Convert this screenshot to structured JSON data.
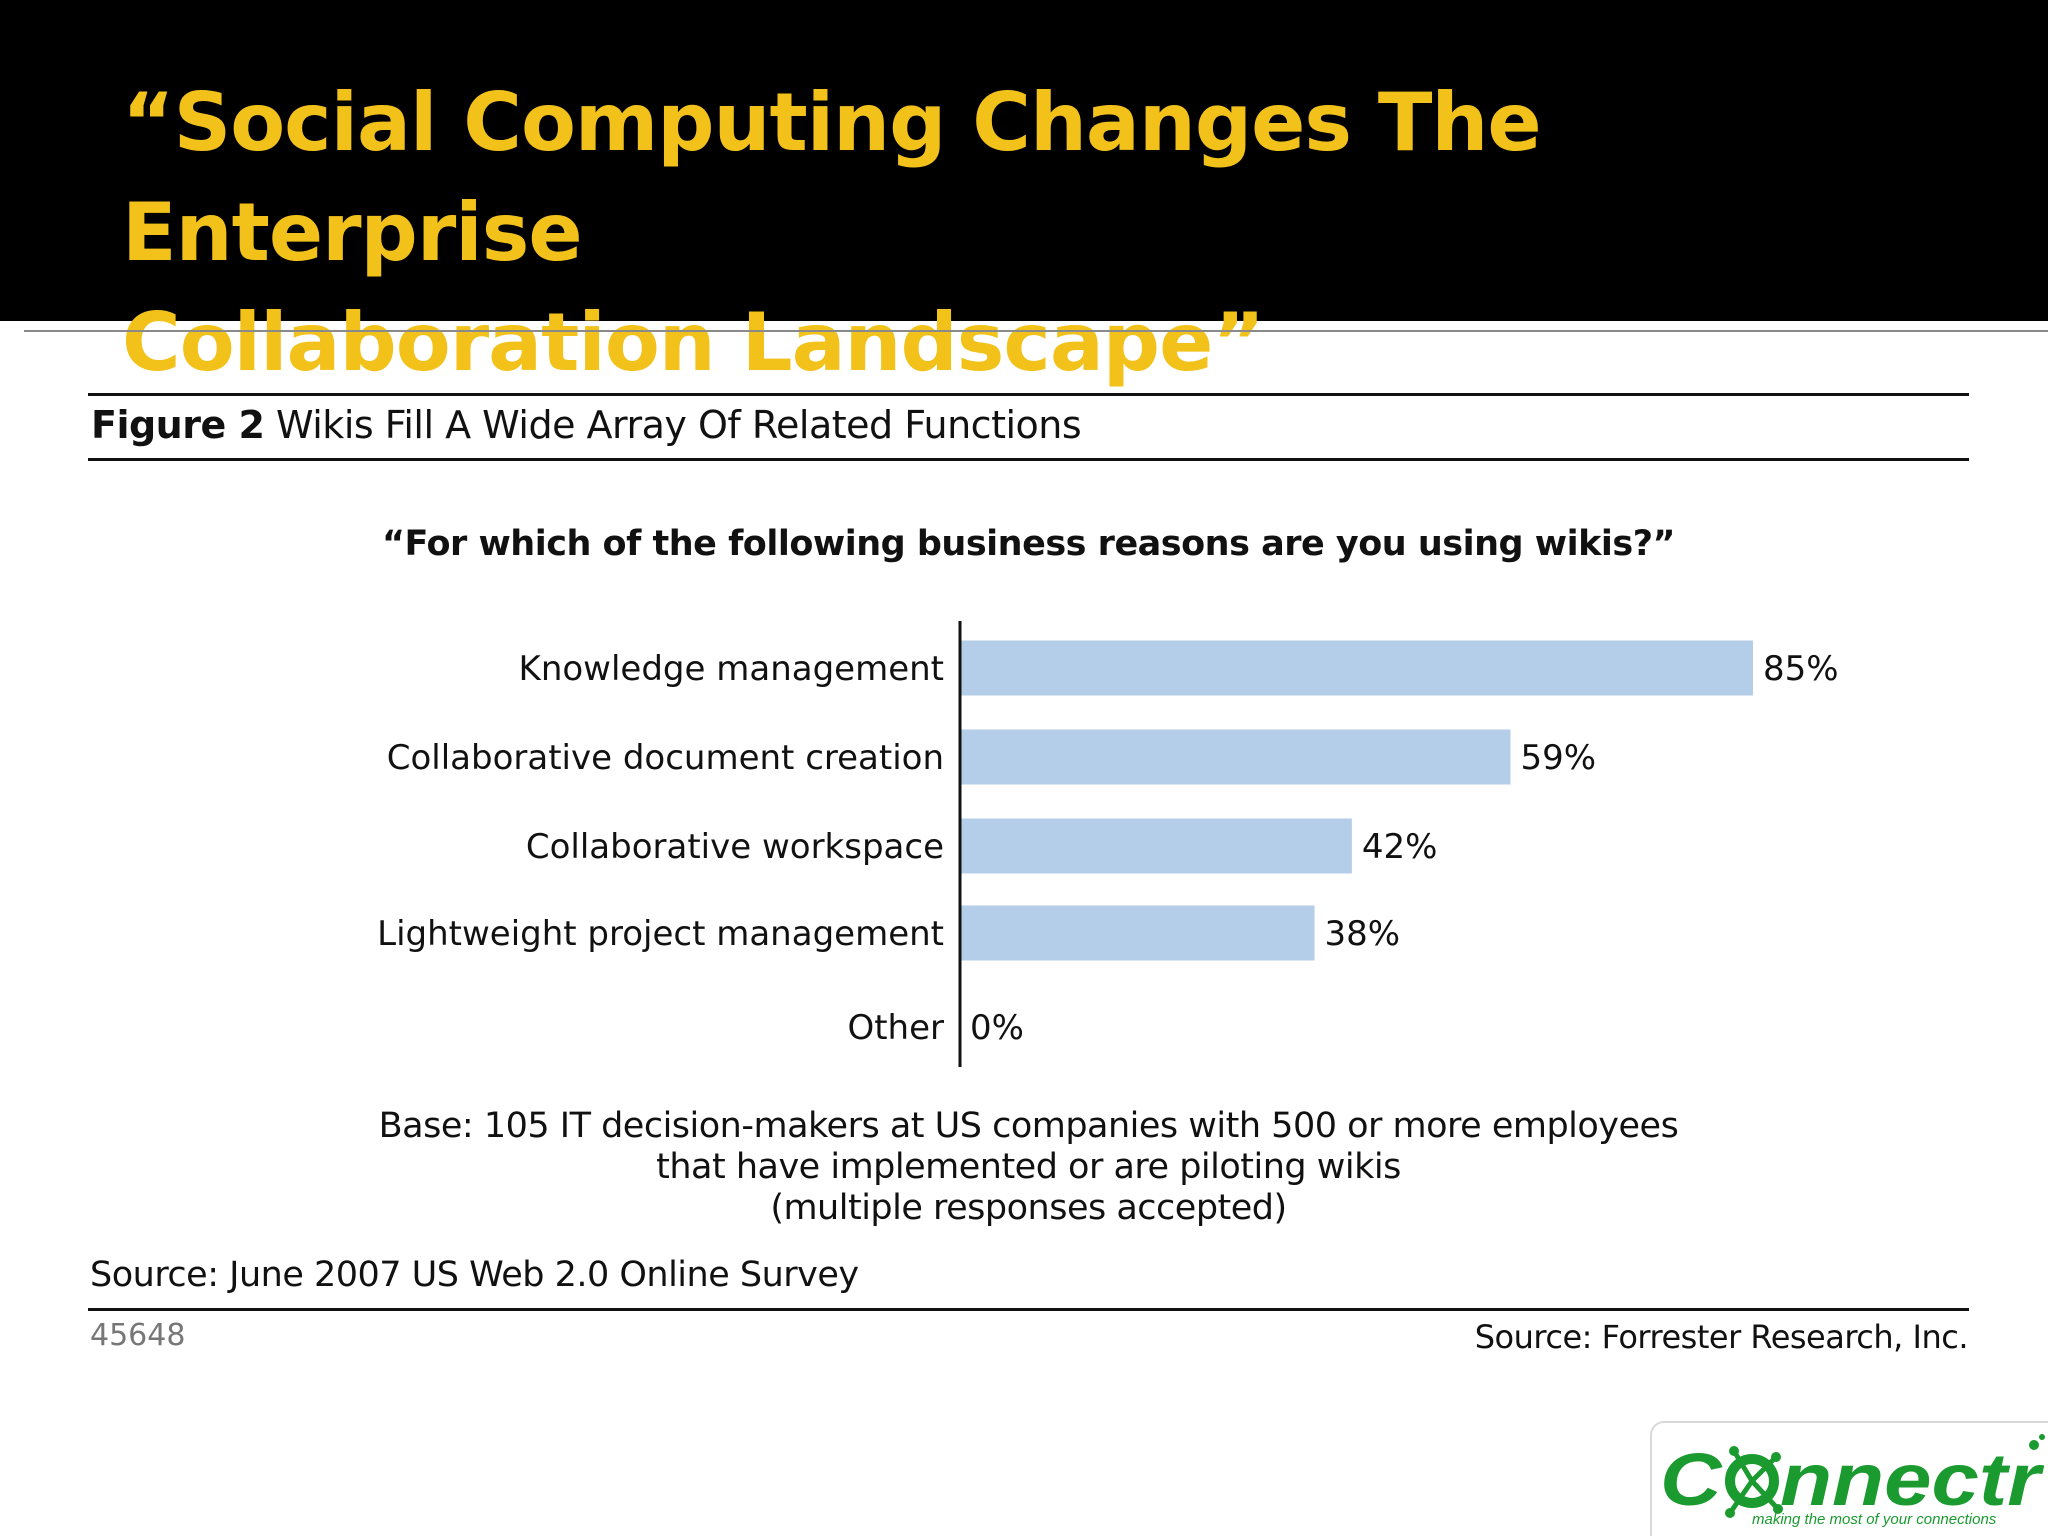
{
  "slide": {
    "title_line1": "“Social Computing Changes The Enterprise",
    "title_line2": "Collaboration Landscape”"
  },
  "figure": {
    "label": "Figure 2",
    "title": "Wikis Fill A Wide Array Of Related Functions",
    "question": "“For which of the following business reasons are you using wikis?”",
    "base_line1": "Base: 105 IT decision-makers at US companies with 500 or more employees",
    "base_line2": "that have implemented or are piloting wikis",
    "base_line3": "(multiple responses accepted)",
    "source_survey": "Source: June 2007 US Web 2.0 Online Survey",
    "figure_id": "45648",
    "source_publisher": "Source: Forrester Research, Inc."
  },
  "chart_data": {
    "type": "bar",
    "orientation": "horizontal",
    "categories": [
      "Knowledge management",
      "Collaborative document creation",
      "Collaborative workspace",
      "Lightweight project management",
      "Other"
    ],
    "values": [
      85,
      59,
      42,
      38,
      0
    ],
    "data_labels": [
      "85%",
      "59%",
      "42%",
      "38%",
      "0%"
    ],
    "unit": "%",
    "xlim": [
      0,
      100
    ],
    "grid": false,
    "bar_color": "#b4cde9"
  },
  "logo": {
    "name": "Connectr",
    "tagline": "making the most of your connections",
    "color": "#1a9a2f"
  }
}
